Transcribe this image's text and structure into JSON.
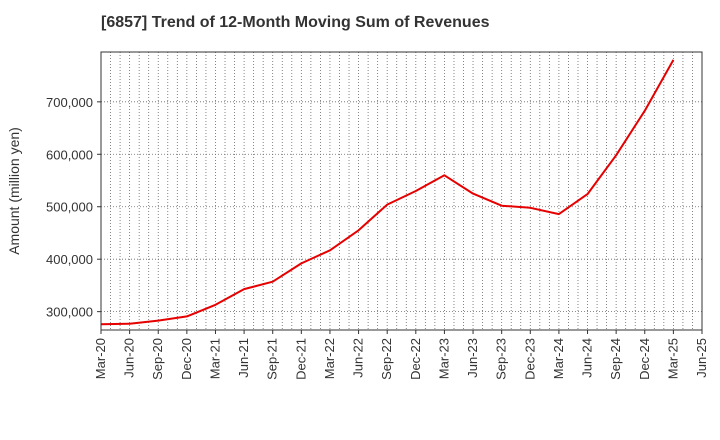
{
  "chart_data": {
    "type": "line",
    "title": "[6857]  Trend of 12-Month Moving Sum of Revenues",
    "xlabel": "",
    "ylabel": "Amount (million yen)",
    "x_ticks": [
      "Mar-20",
      "Jun-20",
      "Sep-20",
      "Dec-20",
      "Mar-21",
      "Jun-21",
      "Sep-21",
      "Dec-21",
      "Mar-22",
      "Jun-22",
      "Sep-22",
      "Dec-22",
      "Mar-23",
      "Jun-23",
      "Sep-23",
      "Dec-23",
      "Mar-24",
      "Jun-24",
      "Sep-24",
      "Dec-24",
      "Mar-25",
      "Jun-25"
    ],
    "y_ticks": [
      300000,
      400000,
      500000,
      600000,
      700000
    ],
    "y_tick_labels": [
      "300,000",
      "400,000",
      "500,000",
      "600,000",
      "700,000"
    ],
    "ylim": [
      265000,
      795000
    ],
    "grid": true,
    "line_color": "#e60000",
    "series": [
      {
        "name": "",
        "x": [
          "Mar-20",
          "Jun-20",
          "Sep-20",
          "Dec-20",
          "Mar-21",
          "Jun-21",
          "Sep-21",
          "Dec-21",
          "Mar-22",
          "Jun-22",
          "Sep-22",
          "Dec-22",
          "Mar-23",
          "Jun-23",
          "Sep-23",
          "Dec-23",
          "Mar-24",
          "Jun-24",
          "Sep-24",
          "Dec-24",
          "Mar-25"
        ],
        "values": [
          276000,
          277000,
          283000,
          291000,
          313000,
          343000,
          357000,
          392000,
          417000,
          455000,
          504000,
          530000,
          560000,
          525000,
          502000,
          498000,
          486000,
          524000,
          598000,
          683000,
          780000
        ]
      }
    ]
  }
}
